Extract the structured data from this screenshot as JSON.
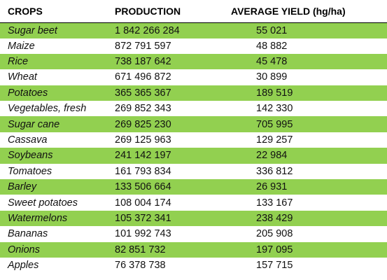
{
  "table": {
    "headers": {
      "crop": "CROPS",
      "production": "PRODUCTION",
      "yield": "AVERAGE YIELD (hg/ha)"
    },
    "rows": [
      {
        "crop": "Sugar beet",
        "production": "1 842 266 284",
        "yield": "55 021",
        "highlight": true
      },
      {
        "crop": "Maize",
        "production": "872 791 597",
        "yield": "48 882",
        "highlight": false
      },
      {
        "crop": "Rice",
        "production": "738 187 642",
        "yield": "45 478",
        "highlight": true
      },
      {
        "crop": "Wheat",
        "production": "671 496 872",
        "yield": "30 899",
        "highlight": false
      },
      {
        "crop": "Potatoes",
        "production": "365 365 367",
        "yield": "189 519",
        "highlight": true
      },
      {
        "crop": "Vegetables, fresh",
        "production": "269 852 343",
        "yield": "142 330",
        "highlight": false
      },
      {
        "crop": "Sugar cane",
        "production": "269 825 230",
        "yield": "705 995",
        "highlight": true
      },
      {
        "crop": "Cassava",
        "production": "269 125 963",
        "yield": "129 257",
        "highlight": false
      },
      {
        "crop": "Soybeans",
        "production": "241 142 197",
        "yield": "22 984",
        "highlight": true
      },
      {
        "crop": "Tomatoes",
        "production": "161 793 834",
        "yield": "336 812",
        "highlight": false
      },
      {
        "crop": "Barley",
        "production": "133 506 664",
        "yield": "26 931",
        "highlight": true
      },
      {
        "crop": "Sweet potatoes",
        "production": "108 004 174",
        "yield": "133 167",
        "highlight": false
      },
      {
        "crop": "Watermelons",
        "production": "105 372 341",
        "yield": "238 429",
        "highlight": true
      },
      {
        "crop": "Bananas",
        "production": "101 992 743",
        "yield": "205 908",
        "highlight": false
      },
      {
        "crop": "Onions",
        "production": "82 851 732",
        "yield": "197 095",
        "highlight": true
      },
      {
        "crop": "Apples",
        "production": "76 378 738",
        "yield": "157 715",
        "highlight": false
      }
    ],
    "colors": {
      "highlight_row": "#92d050",
      "plain_row": "#ffffff",
      "header_rule": "#000000"
    }
  }
}
